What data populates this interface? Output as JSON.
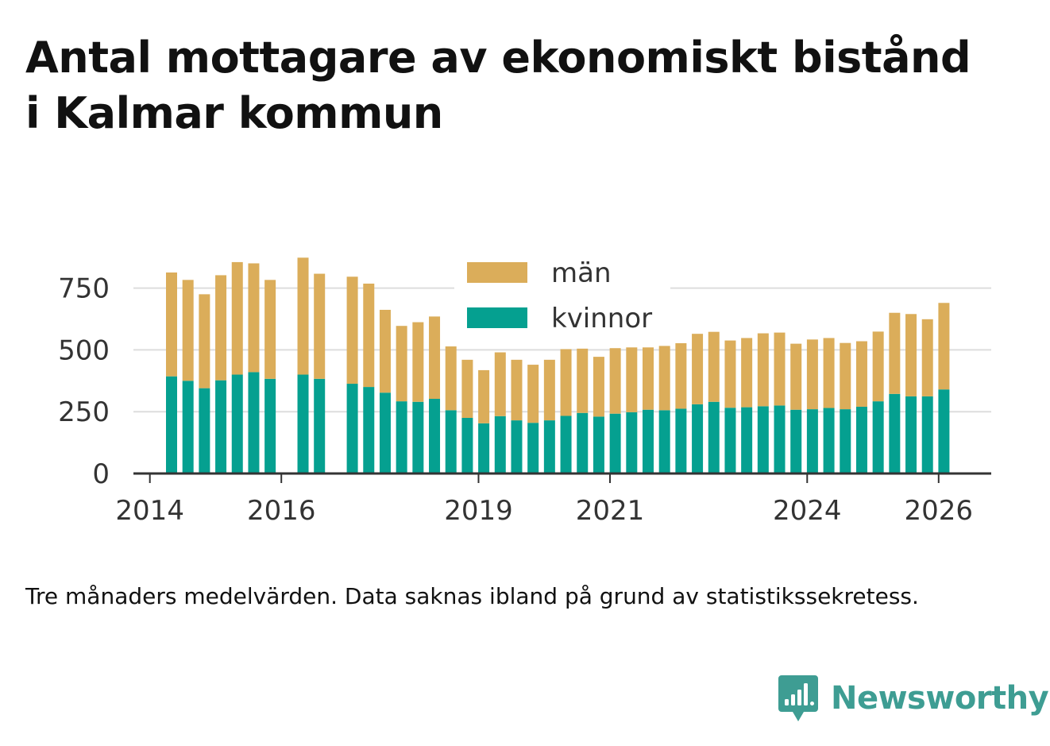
{
  "title_lines": [
    "Antal mottagare av ekonomiskt bistånd",
    "i Kalmar kommun"
  ],
  "caption": "Tre månaders medelvärden. Data saknas ibland på grund av statistikssekretess.",
  "brand": {
    "name": "Newsworthy",
    "color": "#3e9d93"
  },
  "colors": {
    "man": "#dbad5a",
    "kvinnor": "#05a090",
    "grid": "#dddddd",
    "axis": "#333333"
  },
  "chart_data": {
    "type": "bar",
    "stacked": true,
    "title": "Antal mottagare av ekonomiskt bistånd i Kalmar kommun",
    "xlabel": "",
    "ylabel": "",
    "ylim": [
      0,
      900
    ],
    "yticks": [
      0,
      250,
      500,
      750
    ],
    "xlim": [
      2013.75,
      2026.8
    ],
    "xticks": [
      2014,
      2016,
      2019,
      2021,
      2024,
      2026
    ],
    "legend": {
      "position": "top-center",
      "order": [
        "män",
        "kvinnor"
      ]
    },
    "x": [
      2014.33,
      2014.58,
      2014.83,
      2015.08,
      2015.33,
      2015.58,
      2015.83,
      2016.33,
      2016.58,
      2017.08,
      2017.33,
      2017.58,
      2017.83,
      2018.08,
      2018.33,
      2018.58,
      2018.83,
      2019.08,
      2019.33,
      2019.58,
      2019.83,
      2020.08,
      2020.33,
      2020.58,
      2020.83,
      2021.08,
      2021.33,
      2021.58,
      2021.83,
      2022.08,
      2022.33,
      2022.58,
      2022.83,
      2023.08,
      2023.33,
      2023.58,
      2023.83,
      2024.08,
      2024.33,
      2024.58,
      2024.83,
      2025.08,
      2025.33,
      2025.58,
      2025.83,
      2026.08
    ],
    "series": [
      {
        "name": "kvinnor",
        "color": "#05a090",
        "values": [
          393,
          375,
          345,
          377,
          400,
          410,
          383,
          400,
          383,
          363,
          350,
          327,
          292,
          290,
          302,
          256,
          225,
          203,
          232,
          215,
          205,
          215,
          233,
          245,
          230,
          242,
          248,
          258,
          256,
          262,
          280,
          290,
          266,
          268,
          272,
          275,
          258,
          260,
          265,
          260,
          270,
          292,
          322,
          312,
          312,
          340
        ]
      },
      {
        "name": "män",
        "color": "#dbad5a",
        "values": [
          420,
          408,
          380,
          425,
          455,
          440,
          400,
          473,
          425,
          433,
          418,
          335,
          305,
          322,
          333,
          258,
          235,
          215,
          258,
          245,
          235,
          245,
          270,
          260,
          242,
          265,
          262,
          252,
          260,
          265,
          285,
          283,
          272,
          280,
          295,
          295,
          267,
          282,
          283,
          268,
          265,
          282,
          328,
          333,
          312,
          350
        ]
      }
    ]
  }
}
